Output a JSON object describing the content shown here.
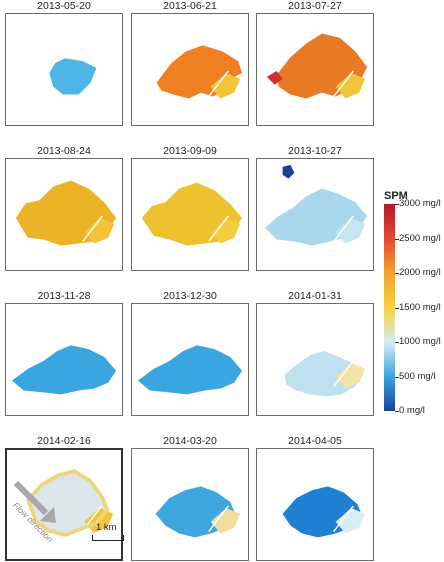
{
  "panels": [
    {
      "date": "2013-05-20"
    },
    {
      "date": "2013-06-21"
    },
    {
      "date": "2013-07-27"
    },
    {
      "date": "2013-08-24"
    },
    {
      "date": "2013-09-09"
    },
    {
      "date": "2013-10-27"
    },
    {
      "date": "2013-11-28"
    },
    {
      "date": "2013-12-30"
    },
    {
      "date": "2014-01-31"
    },
    {
      "date": "2014-02-16"
    },
    {
      "date": "2014-03-20"
    },
    {
      "date": "2014-04-05"
    }
  ],
  "colorbar": {
    "title": "SPM",
    "ticks": [
      "3000 mg/l",
      "2500 mg/l",
      "2000 mg/l",
      "1500 mg/l",
      "1000 mg/l",
      "500 mg/l",
      "0 mg/l"
    ],
    "colors": [
      "#b2182b",
      "#e34a33",
      "#f4a32a",
      "#f6d23b",
      "#d6ecf3",
      "#3aa6e0",
      "#1a3f9c"
    ]
  },
  "annotations": {
    "flow_direction": "Flow direction",
    "scale_bar": "1 km"
  },
  "panel_colors": {
    "2013-05-20": {
      "main": "#4fb5e6"
    },
    "2013-06-21": {
      "main": "#ee7f22",
      "tail": "#f3c43a"
    },
    "2013-07-27": {
      "main": "#e97a25",
      "tail": "#f3c43a",
      "edge": "#d0302a"
    },
    "2013-08-24": {
      "main": "#ebb428",
      "tail": "#f3c43a"
    },
    "2013-09-09": {
      "main": "#eec12f",
      "tail": "#f4cd3e"
    },
    "2013-10-27": {
      "main": "#a9d7ec",
      "tail": "#c8e4ef",
      "edge": "#1a3f9c"
    },
    "2013-11-28": {
      "main": "#3aa6e0"
    },
    "2013-12-30": {
      "main": "#3aa6e0"
    },
    "2014-01-31": {
      "main": "#bfe0ee",
      "tail": "#f3e3a6"
    },
    "2014-02-16": {
      "main": "#dbe7ea",
      "tail": "#f3c43a",
      "edge": "#f0d67a"
    },
    "2014-03-20": {
      "main": "#3ea7e0",
      "tail": "#f0dea0"
    },
    "2014-04-05": {
      "main": "#1f7fd0",
      "tail": "#d8ecf3"
    }
  }
}
